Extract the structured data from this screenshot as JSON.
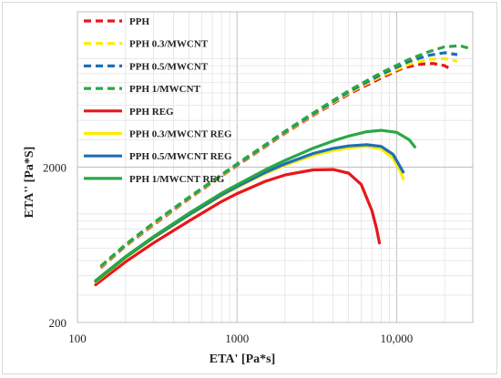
{
  "chart_data": {
    "type": "line",
    "title": "",
    "xlabel": "ETA' [Pa*s]",
    "ylabel": "ETA'' [Pa*S]",
    "x_scale": "log",
    "y_scale": "log",
    "xlim": [
      100,
      30000
    ],
    "ylim": [
      200,
      20000
    ],
    "x_ticks": [
      100,
      1000,
      10000
    ],
    "x_tick_labels": [
      "100",
      "1000",
      "10,000"
    ],
    "y_ticks": [
      200,
      2000
    ],
    "y_tick_labels": [
      "200",
      "2000"
    ],
    "grid": true,
    "legend_position": "top-left",
    "series": [
      {
        "name": "PPH",
        "color": "#e8161b",
        "dash": true,
        "x": [
          140,
          200,
          300,
          500,
          800,
          1000,
          1500,
          2000,
          3000,
          5000,
          8000,
          11000,
          14000,
          17000,
          20000,
          22000
        ],
        "y": [
          450,
          620,
          850,
          1250,
          1750,
          2050,
          2700,
          3300,
          4300,
          5900,
          7500,
          8700,
          9200,
          9300,
          9000,
          8500
        ]
      },
      {
        "name": "PPH 0.3/MWCNT",
        "color": "#ffeb00",
        "dash": true,
        "x": [
          140,
          200,
          300,
          500,
          800,
          1000,
          1500,
          2000,
          3000,
          5000,
          8000,
          12000,
          16000,
          20000,
          24000
        ],
        "y": [
          455,
          625,
          860,
          1260,
          1760,
          2070,
          2720,
          3330,
          4350,
          6000,
          7700,
          9200,
          9900,
          10000,
          9600
        ]
      },
      {
        "name": "PPH 0.5/MWCNT",
        "color": "#1f6fb5",
        "dash": true,
        "x": [
          140,
          200,
          300,
          500,
          800,
          1000,
          1500,
          2000,
          3000,
          5000,
          8000,
          12000,
          16000,
          20000,
          24000
        ],
        "y": [
          460,
          630,
          870,
          1270,
          1780,
          2080,
          2750,
          3370,
          4400,
          6100,
          7900,
          9600,
          10500,
          10900,
          10600
        ]
      },
      {
        "name": "PPH 1/MWCNT",
        "color": "#29a844",
        "dash": true,
        "x": [
          140,
          200,
          300,
          500,
          800,
          1000,
          1500,
          2000,
          3000,
          5000,
          8000,
          12000,
          16000,
          20000,
          25000,
          28000
        ],
        "y": [
          460,
          635,
          875,
          1280,
          1790,
          2100,
          2780,
          3400,
          4460,
          6200,
          8100,
          9900,
          11100,
          11900,
          12100,
          11700
        ]
      },
      {
        "name": "PPH REG",
        "color": "#e8161b",
        "dash": false,
        "x": [
          130,
          200,
          300,
          500,
          800,
          1000,
          1500,
          2000,
          3000,
          4000,
          5000,
          6000,
          7000,
          7500,
          7800
        ],
        "y": [
          350,
          490,
          650,
          900,
          1200,
          1350,
          1620,
          1780,
          1920,
          1930,
          1830,
          1550,
          1050,
          800,
          650
        ]
      },
      {
        "name": "PPH 0.3/MWCNT REG",
        "color": "#ffeb00",
        "dash": false,
        "x": [
          130,
          200,
          300,
          500,
          800,
          1000,
          1500,
          2000,
          3000,
          4000,
          5000,
          6500,
          8000,
          9500,
          10500,
          11000
        ],
        "y": [
          365,
          520,
          700,
          980,
          1310,
          1480,
          1820,
          2060,
          2380,
          2560,
          2660,
          2720,
          2620,
          2280,
          1900,
          1680
        ]
      },
      {
        "name": "PPH 0.5/MWCNT REG",
        "color": "#1f6fb5",
        "dash": false,
        "x": [
          130,
          200,
          300,
          500,
          800,
          1000,
          1500,
          2000,
          3000,
          4000,
          5000,
          6500,
          8000,
          9500,
          11000
        ],
        "y": [
          368,
          525,
          705,
          990,
          1325,
          1500,
          1850,
          2100,
          2450,
          2640,
          2740,
          2790,
          2720,
          2420,
          1860
        ]
      },
      {
        "name": "PPH 1/MWCNT REG",
        "color": "#29a844",
        "dash": false,
        "x": [
          130,
          200,
          300,
          500,
          800,
          1000,
          1500,
          2000,
          3000,
          4000,
          5000,
          6500,
          8000,
          10000,
          12000,
          13000
        ],
        "y": [
          372,
          530,
          715,
          1010,
          1360,
          1540,
          1920,
          2210,
          2650,
          2950,
          3170,
          3380,
          3450,
          3350,
          3000,
          2700
        ]
      }
    ]
  }
}
